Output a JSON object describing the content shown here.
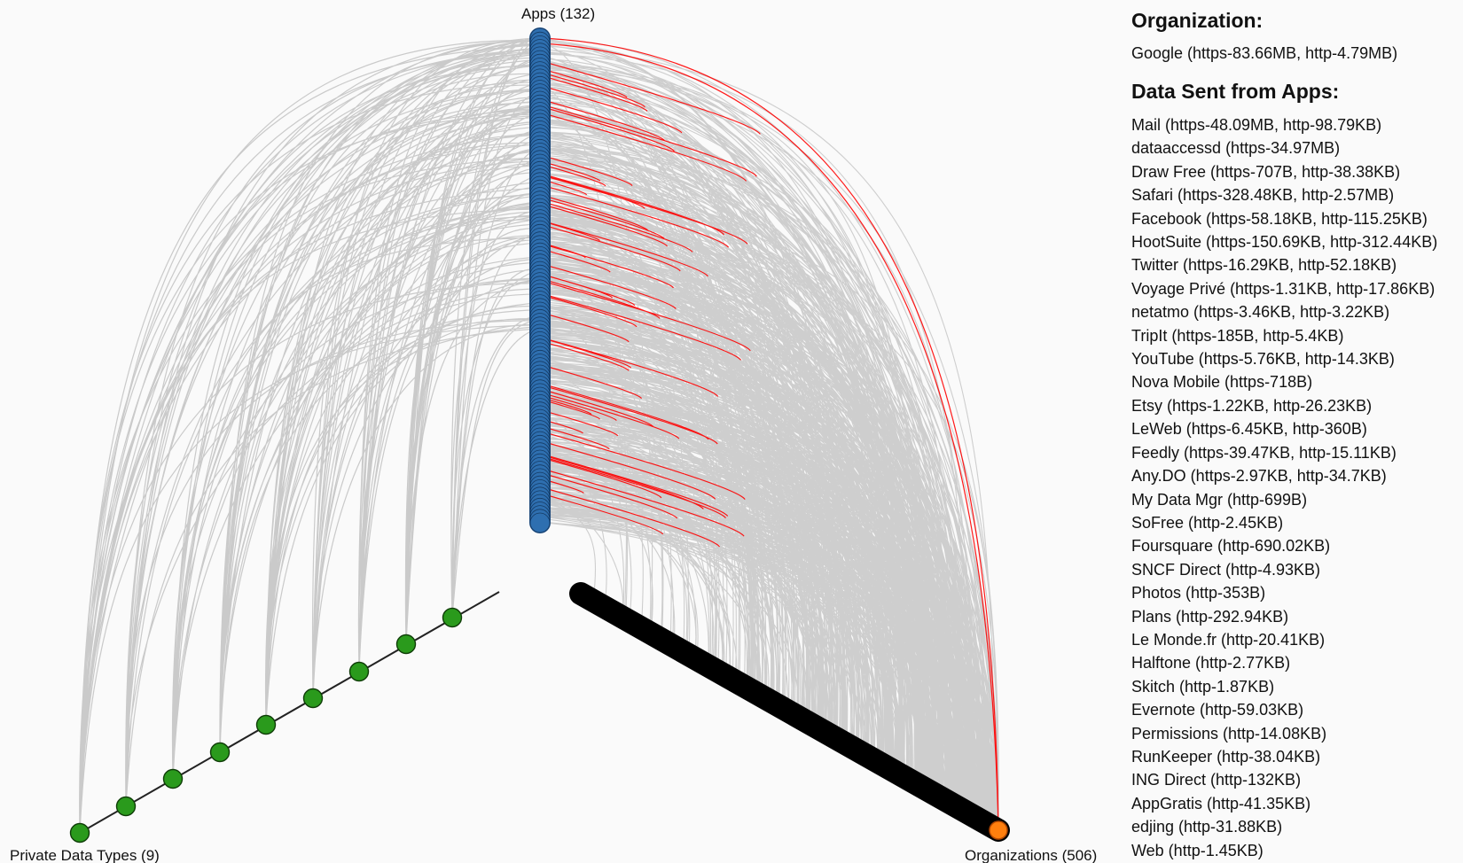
{
  "axes": {
    "apps": {
      "label": "Apps (132)",
      "count": 132,
      "color": "#2e6fb0"
    },
    "private_data_types": {
      "label": "Private Data Types (9)",
      "count": 9,
      "color": "#2a9a1c"
    },
    "organizations": {
      "label": "Organizations (506)",
      "count": 506,
      "color": "#000000",
      "selected_color": "#ff7f0e"
    }
  },
  "link_colors": {
    "default": "#a9a9a9",
    "highlight": "#ff0000"
  },
  "panel": {
    "organization_heading": "Organization:",
    "organization_value": "Google (https-83.66MB, http-4.79MB)",
    "apps_heading": "Data Sent from Apps:",
    "apps": [
      "Mail (https-48.09MB, http-98.79KB)",
      "dataaccessd (https-34.97MB)",
      "Draw Free (https-707B, http-38.38KB)",
      "Safari (https-328.48KB, http-2.57MB)",
      "Facebook (https-58.18KB, http-115.25KB)",
      "HootSuite (https-150.69KB, http-312.44KB)",
      "Twitter (https-16.29KB, http-52.18KB)",
      "Voyage Privé (https-1.31KB, http-17.86KB)",
      "netatmo (https-3.46KB, http-3.22KB)",
      "TripIt (https-185B, http-5.4KB)",
      "YouTube (https-5.76KB, http-14.3KB)",
      "Nova Mobile (https-718B)",
      "Etsy (https-1.22KB, http-26.23KB)",
      "LeWeb (https-6.45KB, http-360B)",
      "Feedly (https-39.47KB, http-15.11KB)",
      "Any.DO (https-2.97KB, http-34.7KB)",
      "My Data Mgr (http-699B)",
      "SoFree (http-2.45KB)",
      "Foursquare (http-690.02KB)",
      "SNCF Direct (http-4.93KB)",
      "Photos (http-353B)",
      "Plans (http-292.94KB)",
      "Le Monde.fr (http-20.41KB)",
      "Halftone (http-2.77KB)",
      "Skitch (http-1.87KB)",
      "Evernote (http-59.03KB)",
      "Permissions (http-14.08KB)",
      "RunKeeper (http-38.04KB)",
      "ING Direct (http-132KB)",
      "AppGratis (http-41.35KB)",
      "edjing (http-31.88KB)",
      "Web (http-1.45KB)"
    ]
  }
}
